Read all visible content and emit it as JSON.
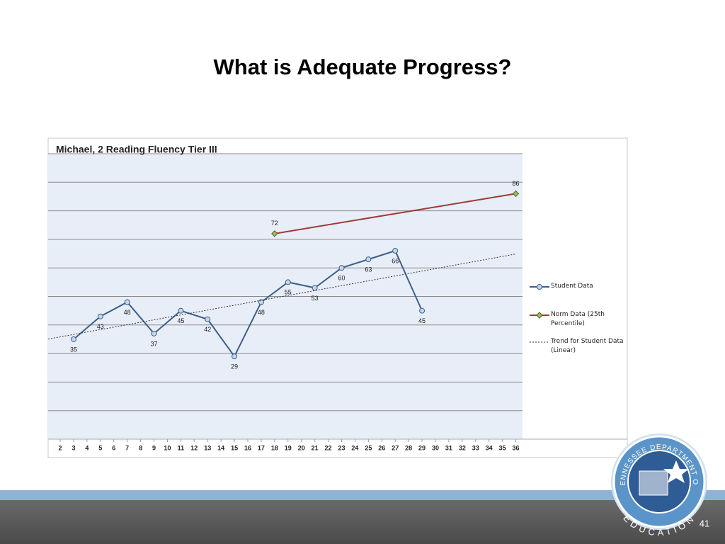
{
  "slide": {
    "title": "What is Adequate Progress?",
    "page_number": "41"
  },
  "logo": {
    "top_text": "TENNESSEE DEPARTMENT OF",
    "bottom_text": "EDUCATION"
  },
  "chart_data": {
    "type": "line",
    "title": "Michael, 2 Reading Fluency Tier III",
    "xlim": [
      1.1,
      36.5
    ],
    "xticks": [
      2,
      3,
      4,
      5,
      6,
      7,
      8,
      9,
      10,
      11,
      12,
      13,
      14,
      15,
      16,
      17,
      18,
      19,
      20,
      21,
      22,
      23,
      24,
      25,
      26,
      27,
      28,
      29,
      30,
      31,
      32,
      33,
      34,
      35,
      36
    ],
    "ylim": [
      0,
      100
    ],
    "yticks": [
      0,
      10,
      20,
      30,
      40,
      50,
      60,
      70,
      80,
      90,
      100
    ],
    "show_ytick_labels": false,
    "grid": true,
    "legend": "right",
    "series": [
      {
        "name": "Student Data",
        "color": "#3d5f8a",
        "marker": "circle",
        "label_position": "below",
        "x": [
          3,
          5,
          7,
          9,
          11,
          13,
          15,
          17,
          19,
          21,
          23,
          25,
          27,
          29
        ],
        "values": [
          35,
          43,
          48,
          37,
          45,
          42,
          29,
          48,
          55,
          53,
          60,
          63,
          66,
          45
        ]
      },
      {
        "name": "Norm Data (25th Percentile)",
        "color": "#a33a36",
        "marker": "diamond",
        "label_position": "above",
        "x": [
          18,
          36
        ],
        "values": [
          72,
          86
        ]
      },
      {
        "name": "Trend for Student Data (Linear)",
        "color": "#333333",
        "style": "dotted",
        "trend": "linear"
      }
    ]
  }
}
